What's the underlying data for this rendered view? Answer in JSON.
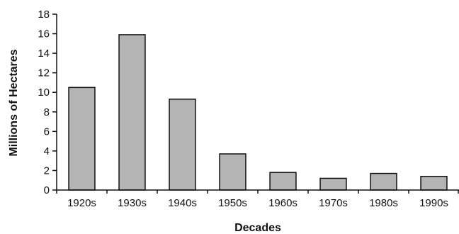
{
  "chart_data": {
    "type": "bar",
    "title": "",
    "xlabel": "Decades",
    "ylabel": "Millions of Hectares",
    "categories": [
      "1920s",
      "1930s",
      "1940s",
      "1950s",
      "1960s",
      "1970s",
      "1980s",
      "1990s"
    ],
    "values": [
      10.5,
      15.9,
      9.3,
      3.7,
      1.8,
      1.2,
      1.7,
      1.4
    ],
    "ylim": [
      0,
      18
    ],
    "yticks": [
      0,
      2,
      4,
      6,
      8,
      10,
      12,
      14,
      16,
      18
    ],
    "grid": false,
    "legend": "none",
    "bar_color": "#b4b4b4",
    "bar_edge_color": "#111111"
  }
}
